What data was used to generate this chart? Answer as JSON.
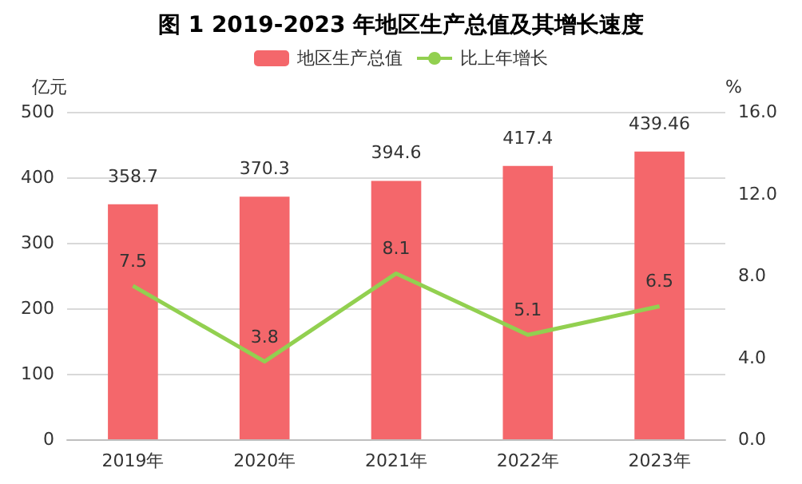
{
  "chart_data": {
    "type": "bar",
    "title": "图 1 2019-2023 年地区生产总值及其增长速度",
    "ylabel": "亿元",
    "y2label": "%",
    "categories": [
      "2019年",
      "2020年",
      "2021年",
      "2022年",
      "2023年"
    ],
    "series": [
      {
        "name": "地区生产总值",
        "color": "#f4676b",
        "values": [
          358.7,
          370.3,
          394.6,
          417.4,
          439.46
        ]
      },
      {
        "name": "比上年增长",
        "type": "line",
        "axis": "y2",
        "color": "#92d050",
        "marker": "none",
        "values": [
          7.5,
          3.8,
          8.1,
          5.1,
          6.5
        ]
      }
    ],
    "ylim": [
      0,
      500
    ],
    "yticks": [
      0,
      100,
      200,
      300,
      400,
      500
    ],
    "y2lim": [
      0,
      16
    ],
    "y2ticks": [
      {
        "value": 0,
        "label": "0.0"
      },
      {
        "value": 4,
        "label": "4.0"
      },
      {
        "value": 8,
        "label": "8.0"
      },
      {
        "value": 12,
        "label": "12.0"
      },
      {
        "value": 16,
        "label": "16.0"
      }
    ],
    "grid": "y",
    "legend": "top",
    "data_labels": true
  }
}
